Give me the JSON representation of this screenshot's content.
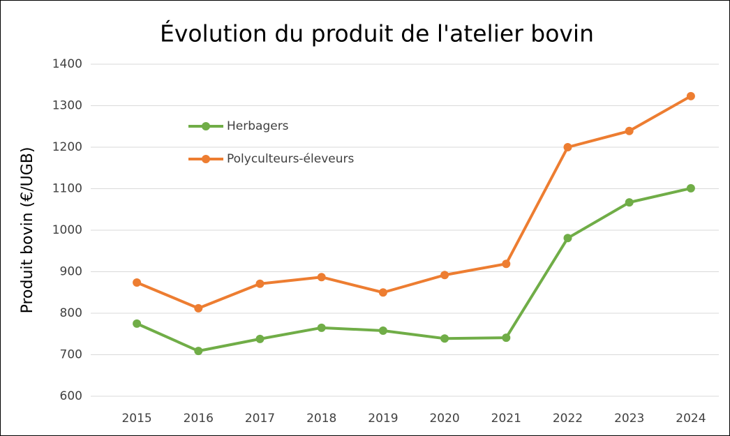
{
  "chart_data": {
    "type": "line",
    "title": "Évolution du produit de l'atelier bovin",
    "y_label": "Produit bovin (€/UGB)",
    "categories": [
      "2015",
      "2016",
      "2017",
      "2018",
      "2019",
      "2020",
      "2021",
      "2022",
      "2023",
      "2024"
    ],
    "series": [
      {
        "name": "Herbagers",
        "color": "#70ad47",
        "values": [
          775,
          709,
          738,
          765,
          758,
          739,
          741,
          981,
          1067,
          1101
        ]
      },
      {
        "name": "Polyculteurs-éleveurs",
        "color": "#ed7d31",
        "values": [
          874,
          812,
          871,
          887,
          850,
          892,
          919,
          1200,
          1239,
          1323
        ]
      }
    ],
    "ylim": [
      600,
      1400
    ],
    "yticks": [
      600,
      700,
      800,
      900,
      1000,
      1100,
      1200,
      1300,
      1400
    ],
    "grid": true,
    "legend": "upper left"
  }
}
